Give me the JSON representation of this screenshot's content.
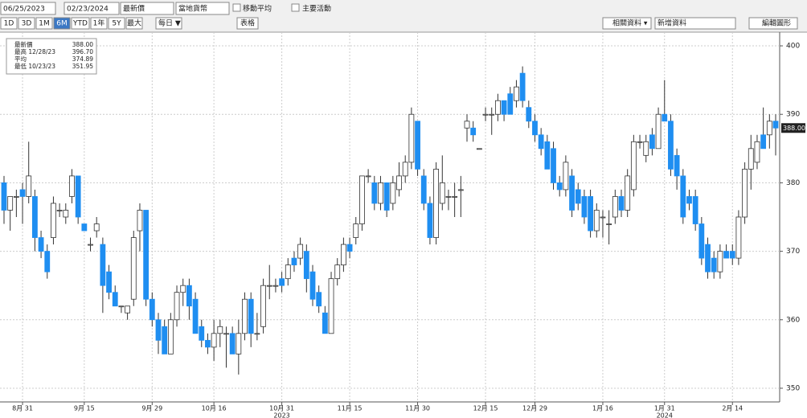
{
  "toolbar": {
    "start_date": "06/25/2023",
    "end_date": "02/23/2024",
    "field": "最新價",
    "currency": "當地貨幣",
    "moving_avg": "移動平均",
    "events": "主要活動",
    "ranges": [
      "1D",
      "3D",
      "1M",
      "6M",
      "YTD",
      "1年",
      "5Y",
      "最大"
    ],
    "active_range": "6M",
    "period": "每日 ▼",
    "table": "表格",
    "related": "相關資料 ▾",
    "add": "新增資料",
    "edit": "編輯圖形"
  },
  "legend": [
    {
      "label": "最新價",
      "value": "388.00"
    },
    {
      "label": "最高 12/28/23",
      "value": "396.70"
    },
    {
      "label": "平均",
      "value": "374.89"
    },
    {
      "label": "最低 10/23/23",
      "value": "351.95"
    }
  ],
  "chart_data": {
    "type": "candlestick",
    "up_color": "#ffffff",
    "down_color": "#1f8ef1",
    "last_label": "388.00",
    "ylim": [
      348,
      402
    ],
    "yticks": [
      350,
      360,
      370,
      380,
      390,
      400
    ],
    "grid": true,
    "categories": [
      null,
      null,
      null,
      "8月 31",
      null,
      null,
      null,
      null,
      null,
      null,
      null,
      null,
      null,
      "9月 15",
      null,
      null,
      null,
      null,
      null,
      null,
      null,
      null,
      null,
      null,
      "9月 29",
      null,
      null,
      null,
      null,
      null,
      null,
      null,
      null,
      null,
      "10月 16",
      null,
      null,
      null,
      null,
      null,
      null,
      null,
      null,
      null,
      null,
      "10月 31",
      null,
      null,
      null,
      null,
      null,
      null,
      null,
      null,
      null,
      null,
      "11月 15",
      null,
      null,
      null,
      null,
      null,
      null,
      null,
      null,
      null,
      null,
      "11月 30",
      null,
      null,
      null,
      null,
      null,
      null,
      null,
      null,
      null,
      null,
      "12月 15",
      null,
      null,
      null,
      null,
      null,
      null,
      null,
      "12月 29",
      null,
      null,
      null,
      null,
      null,
      null,
      null,
      null,
      null,
      null,
      "1月 16",
      null,
      null,
      null,
      null,
      null,
      null,
      null,
      null,
      null,
      "1月 31",
      null,
      null,
      null,
      null,
      null,
      null,
      null,
      null,
      null,
      null,
      "2月 14",
      null,
      null,
      null,
      null,
      null,
      null,
      null
    ],
    "year_labels": [
      "2023",
      "2024"
    ],
    "open": [
      380,
      376,
      378,
      379,
      378,
      378,
      372,
      370,
      372,
      376,
      375,
      378,
      381,
      374,
      371,
      373,
      371,
      367,
      364,
      362,
      361,
      363,
      373,
      376,
      363,
      360,
      359,
      355,
      360,
      364,
      365,
      363,
      359,
      357,
      356,
      358,
      358,
      358,
      355,
      358,
      363,
      358,
      359,
      365,
      365,
      366,
      366,
      369,
      369,
      370,
      367,
      364,
      361,
      358,
      366,
      368,
      371,
      372,
      374,
      381,
      380,
      377,
      380,
      377,
      379,
      381,
      383,
      389,
      381,
      377,
      372,
      377,
      378,
      378,
      379,
      388,
      388,
      385,
      390,
      390,
      390,
      392,
      393,
      392,
      396,
      391,
      389,
      387,
      386,
      385,
      380,
      379,
      381,
      379,
      378,
      378,
      373,
      375,
      374,
      375,
      378,
      376,
      379,
      386,
      384,
      387,
      385,
      390,
      389,
      384,
      381,
      378,
      378,
      374,
      371,
      369,
      367,
      370,
      370,
      369,
      375,
      382,
      383,
      387,
      387,
      389
    ],
    "high": [
      381,
      378,
      379,
      380,
      386,
      379,
      373,
      371,
      378,
      377,
      377,
      382,
      381,
      374,
      372,
      375,
      372,
      368,
      365,
      362,
      362,
      373,
      377,
      376,
      364,
      361,
      360,
      361,
      365,
      366,
      366,
      364,
      360,
      358,
      360,
      360,
      359,
      359,
      360,
      364,
      364,
      361,
      366,
      368,
      366,
      367,
      369,
      370,
      372,
      371,
      368,
      365,
      362,
      367,
      369,
      372,
      372,
      375,
      381,
      382,
      381,
      381,
      380,
      381,
      383,
      384,
      391,
      389,
      382,
      378,
      383,
      384,
      379,
      380,
      381,
      390,
      389,
      385,
      391,
      391,
      393,
      392,
      394,
      395,
      397,
      392,
      390,
      388,
      387,
      386,
      381,
      384,
      382,
      380,
      379,
      379,
      377,
      376,
      376,
      379,
      379,
      382,
      387,
      387,
      387,
      388,
      391,
      395,
      390,
      385,
      382,
      379,
      379,
      375,
      372,
      370,
      371,
      371,
      371,
      376,
      383,
      387,
      387,
      391,
      390,
      390
    ],
    "low": [
      374,
      373,
      375,
      374,
      377,
      370,
      369,
      366,
      371,
      375,
      374,
      377,
      374,
      373,
      370,
      372,
      361,
      363,
      362,
      361,
      360,
      362,
      370,
      362,
      359,
      355,
      355,
      355,
      359,
      362,
      360,
      358,
      356,
      355,
      354,
      356,
      353,
      355,
      352,
      357,
      356,
      357,
      358,
      363,
      364,
      364,
      365,
      367,
      368,
      364,
      362,
      361,
      358,
      358,
      365,
      367,
      369,
      371,
      373,
      380,
      376,
      376,
      375,
      376,
      378,
      380,
      382,
      381,
      376,
      371,
      371,
      376,
      376,
      375,
      375,
      386,
      386,
      385,
      389,
      387,
      389,
      389,
      390,
      391,
      391,
      388,
      386,
      384,
      382,
      379,
      378,
      378,
      375,
      376,
      374,
      372,
      372,
      372,
      371,
      374,
      375,
      375,
      378,
      385,
      383,
      384,
      385,
      389,
      381,
      379,
      374,
      376,
      373,
      368,
      366,
      366,
      366,
      369,
      368,
      368,
      374,
      379,
      382,
      385,
      385,
      384
    ],
    "close": [
      376,
      378,
      378,
      378,
      381,
      372,
      370,
      367,
      377,
      376,
      376,
      381,
      375,
      373,
      371,
      374,
      365,
      364,
      362,
      362,
      362,
      372,
      376,
      363,
      360,
      357,
      355,
      360,
      364,
      365,
      362,
      358,
      357,
      356,
      358,
      359,
      358,
      355,
      358,
      363,
      358,
      358,
      365,
      365,
      365,
      365,
      368,
      368,
      371,
      366,
      363,
      362,
      358,
      366,
      368,
      371,
      370,
      374,
      381,
      381,
      377,
      380,
      376,
      380,
      381,
      383,
      390,
      382,
      377,
      372,
      382,
      380,
      378,
      378,
      379,
      389,
      387,
      385,
      390,
      390,
      392,
      390,
      390,
      394,
      392,
      389,
      387,
      385,
      382,
      380,
      379,
      383,
      376,
      377,
      375,
      373,
      376,
      375,
      374,
      378,
      376,
      381,
      386,
      386,
      386,
      385,
      390,
      389,
      382,
      381,
      375,
      377,
      374,
      369,
      367,
      367,
      370,
      369,
      369,
      375,
      382,
      385,
      386,
      385,
      389,
      388
    ]
  }
}
